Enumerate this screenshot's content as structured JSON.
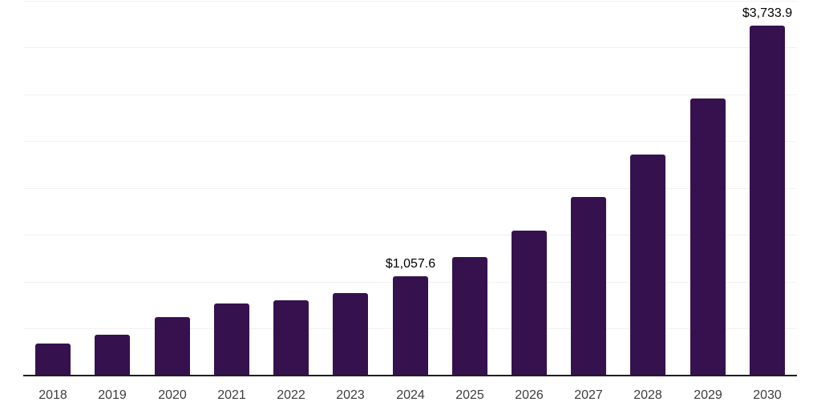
{
  "chart_data": {
    "type": "bar",
    "title": "",
    "xlabel": "",
    "ylabel": "",
    "categories": [
      "2018",
      "2019",
      "2020",
      "2021",
      "2022",
      "2023",
      "2024",
      "2025",
      "2026",
      "2027",
      "2028",
      "2029",
      "2030"
    ],
    "values": [
      342,
      436,
      626,
      769,
      806,
      877,
      1057.6,
      1265,
      1547,
      1908,
      2361,
      2959,
      3733.9
    ],
    "data_labels": [
      "",
      "",
      "",
      "",
      "",
      "",
      "$1,057.6",
      "",
      "",
      "",
      "",
      "",
      "$3,733.9"
    ],
    "ylim": [
      0,
      4000
    ],
    "grid_step": 500,
    "grid": true,
    "legend": false,
    "colors": {
      "bar": "#35124E",
      "value_label": "#000000",
      "tick_label": "#3d3d3d",
      "gridline": "#f1f1f3",
      "axis": "#1f1f1f",
      "background": "#ffffff"
    }
  }
}
